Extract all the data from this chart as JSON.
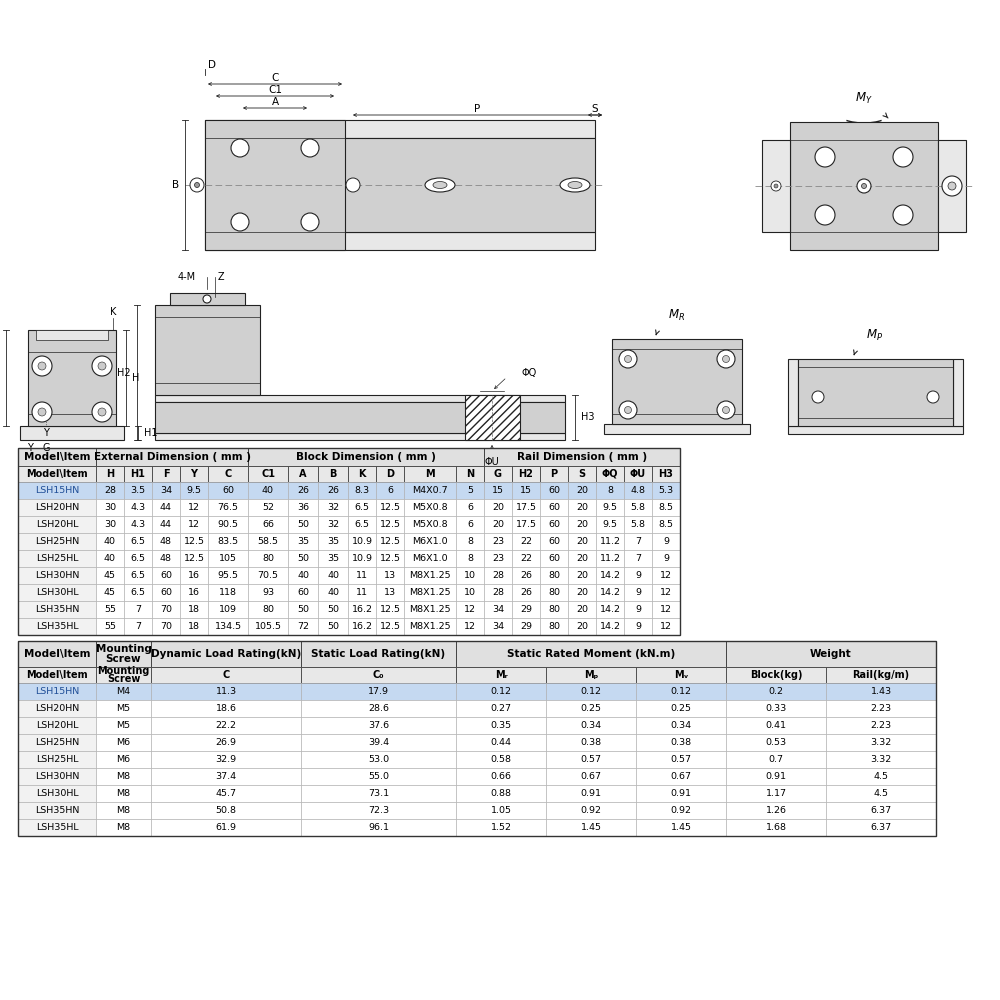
{
  "bg_color": "#ffffff",
  "table1_subheader": [
    "Model\\Item",
    "H",
    "H1",
    "F",
    "Y",
    "C",
    "C1",
    "A",
    "B",
    "K",
    "D",
    "M",
    "N",
    "G",
    "H2",
    "P",
    "S",
    "ΦQ",
    "ΦU",
    "H3"
  ],
  "table1_rows": [
    [
      "LSH15HN",
      "28",
      "3.5",
      "34",
      "9.5",
      "60",
      "40",
      "26",
      "26",
      "8.3",
      "6",
      "M4X0.7",
      "5",
      "15",
      "15",
      "60",
      "20",
      "8",
      "4.8",
      "5.3"
    ],
    [
      "LSH20HN",
      "30",
      "4.3",
      "44",
      "12",
      "76.5",
      "52",
      "36",
      "32",
      "6.5",
      "12.5",
      "M5X0.8",
      "6",
      "20",
      "17.5",
      "60",
      "20",
      "9.5",
      "5.8",
      "8.5"
    ],
    [
      "LSH20HL",
      "30",
      "4.3",
      "44",
      "12",
      "90.5",
      "66",
      "50",
      "32",
      "6.5",
      "12.5",
      "M5X0.8",
      "6",
      "20",
      "17.5",
      "60",
      "20",
      "9.5",
      "5.8",
      "8.5"
    ],
    [
      "LSH25HN",
      "40",
      "6.5",
      "48",
      "12.5",
      "83.5",
      "58.5",
      "35",
      "35",
      "10.9",
      "12.5",
      "M6X1.0",
      "8",
      "23",
      "22",
      "60",
      "20",
      "11.2",
      "7",
      "9"
    ],
    [
      "LSH25HL",
      "40",
      "6.5",
      "48",
      "12.5",
      "105",
      "80",
      "50",
      "35",
      "10.9",
      "12.5",
      "M6X1.0",
      "8",
      "23",
      "22",
      "60",
      "20",
      "11.2",
      "7",
      "9"
    ],
    [
      "LSH30HN",
      "45",
      "6.5",
      "60",
      "16",
      "95.5",
      "70.5",
      "40",
      "40",
      "11",
      "13",
      "M8X1.25",
      "10",
      "28",
      "26",
      "80",
      "20",
      "14.2",
      "9",
      "12"
    ],
    [
      "LSH30HL",
      "45",
      "6.5",
      "60",
      "16",
      "118",
      "93",
      "60",
      "40",
      "11",
      "13",
      "M8X1.25",
      "10",
      "28",
      "26",
      "80",
      "20",
      "14.2",
      "9",
      "12"
    ],
    [
      "LSH35HN",
      "55",
      "7",
      "70",
      "18",
      "109",
      "80",
      "50",
      "50",
      "16.2",
      "12.5",
      "M8X1.25",
      "12",
      "34",
      "29",
      "80",
      "20",
      "14.2",
      "9",
      "12"
    ],
    [
      "LSH35HL",
      "55",
      "7",
      "70",
      "18",
      "134.5",
      "105.5",
      "72",
      "50",
      "16.2",
      "12.5",
      "M8X1.25",
      "12",
      "34",
      "29",
      "80",
      "20",
      "14.2",
      "9",
      "12"
    ]
  ],
  "table1_highlight_row": 0,
  "table1_highlight_color": "#c5d9f1",
  "table1_highlight_text_color": "#1f4e97",
  "table2_subheader": [
    "Model\\Item",
    "Mounting\nScrew",
    "C",
    "C₀",
    "Mᵣ",
    "Mₚ",
    "Mᵥ",
    "Block(kg)",
    "Rail(kg/m)"
  ],
  "table2_rows": [
    [
      "LSH15HN",
      "M4",
      "11.3",
      "17.9",
      "0.12",
      "0.12",
      "0.12",
      "0.2",
      "1.43"
    ],
    [
      "LSH20HN",
      "M5",
      "18.6",
      "28.6",
      "0.27",
      "0.25",
      "0.25",
      "0.33",
      "2.23"
    ],
    [
      "LSH20HL",
      "M5",
      "22.2",
      "37.6",
      "0.35",
      "0.34",
      "0.34",
      "0.41",
      "2.23"
    ],
    [
      "LSH25HN",
      "M6",
      "26.9",
      "39.4",
      "0.44",
      "0.38",
      "0.38",
      "0.53",
      "3.32"
    ],
    [
      "LSH25HL",
      "M6",
      "32.9",
      "53.0",
      "0.58",
      "0.57",
      "0.57",
      "0.7",
      "3.32"
    ],
    [
      "LSH30HN",
      "M8",
      "37.4",
      "55.0",
      "0.66",
      "0.67",
      "0.67",
      "0.91",
      "4.5"
    ],
    [
      "LSH30HL",
      "M8",
      "45.7",
      "73.1",
      "0.88",
      "0.91",
      "0.91",
      "1.17",
      "4.5"
    ],
    [
      "LSH35HN",
      "M8",
      "50.8",
      "72.3",
      "1.05",
      "0.92",
      "0.92",
      "1.26",
      "6.37"
    ],
    [
      "LSH35HL",
      "M8",
      "61.9",
      "96.1",
      "1.52",
      "1.45",
      "1.45",
      "1.68",
      "6.37"
    ]
  ],
  "table2_highlight_row": 0,
  "table2_highlight_color": "#c5d9f1",
  "table2_highlight_text_color": "#1f4e97",
  "draw_lc": "#222222",
  "draw_lw": 0.8,
  "dim_lc": "#222222",
  "dim_lw": 0.6,
  "fill_light": "#e8e8e8",
  "fill_mid": "#d0d0d0",
  "fill_dark": "#b8b8b8",
  "fill_hatch": "#cccccc"
}
